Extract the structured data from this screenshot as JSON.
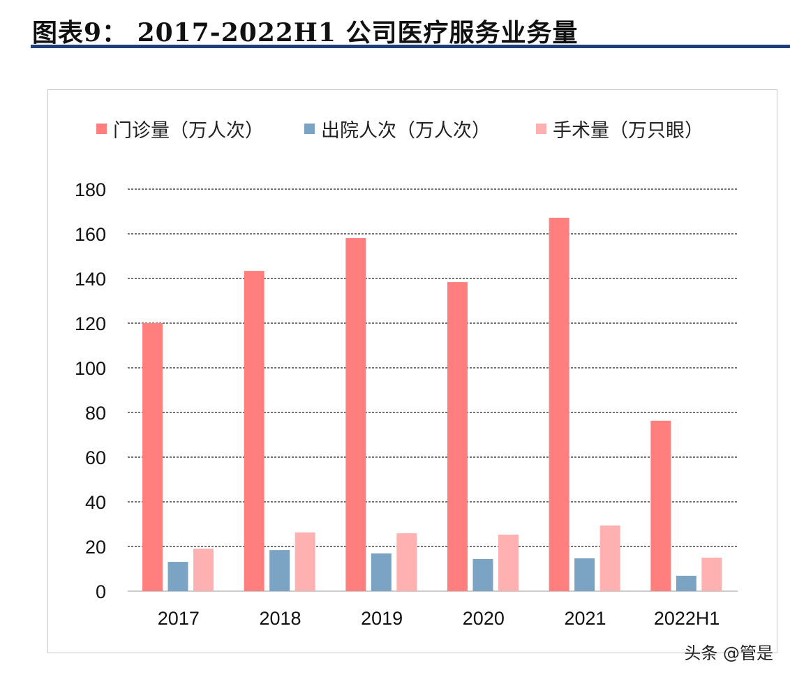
{
  "title": "图表9：  2017-2022H1 公司医疗服务业务量",
  "watermark": "头条 @管是",
  "chart_data": {
    "type": "bar",
    "categories": [
      "2017",
      "2018",
      "2019",
      "2020",
      "2021",
      "2022H1"
    ],
    "series": [
      {
        "name": "门诊量（万人次）",
        "color": "#ff7f7f",
        "values": [
          120,
          143.4,
          158.1,
          138.4,
          167.2,
          76.3
        ]
      },
      {
        "name": "出院人次（万人次）",
        "color": "#7ba3c4",
        "values": [
          13.1,
          18.4,
          16.9,
          14.4,
          14.7,
          6.9
        ]
      },
      {
        "name": "手术量（万只眼）",
        "color": "#ffb0b0",
        "values": [
          19,
          26.3,
          25.9,
          25.3,
          29.4,
          15
        ]
      }
    ],
    "ylim": [
      0,
      180
    ],
    "yticks": [
      0,
      20,
      40,
      60,
      80,
      100,
      120,
      140,
      160,
      180
    ],
    "grid": true,
    "legend": "top"
  }
}
